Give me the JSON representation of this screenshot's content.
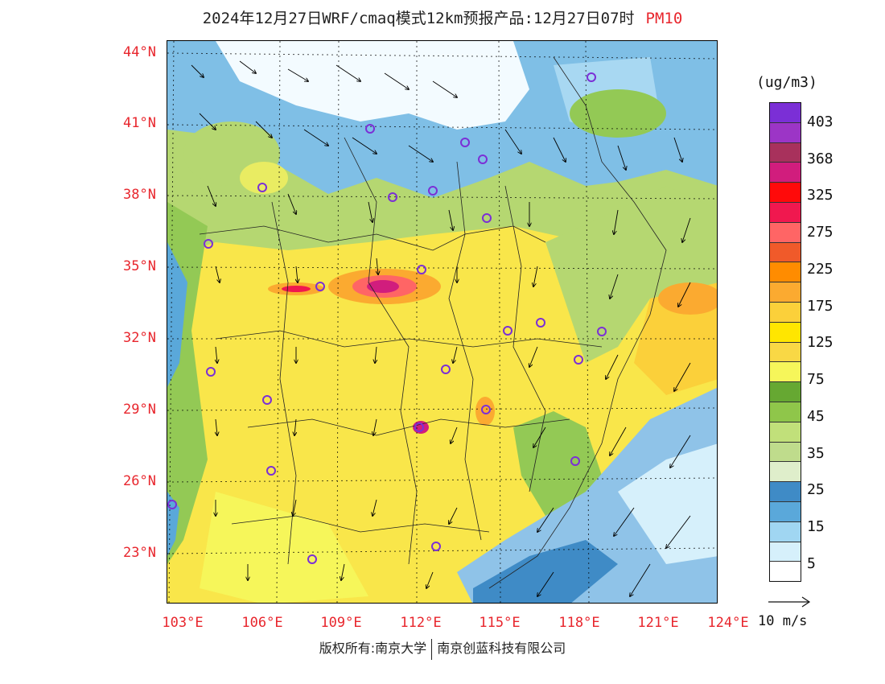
{
  "header": {
    "title": "2024年12月27日WRF/cmaq模式12km预报产品:12月27日07时",
    "variable": "PM10"
  },
  "map": {
    "lat_labels": [
      "44°N",
      "41°N",
      "38°N",
      "35°N",
      "32°N",
      "29°N",
      "26°N",
      "23°N"
    ],
    "lon_labels": [
      "103°E",
      "106°E",
      "109°E",
      "112°E",
      "115°E",
      "118°E",
      "121°E",
      "124°E"
    ],
    "colors": {
      "yellow_high": "#fce800",
      "orange": "#fbb33a",
      "red": "#e8262d",
      "magenta": "#c8157a",
      "green": "#93c955",
      "blue": "#4f97cf",
      "light_blue": "#a6d8f2"
    }
  },
  "legend": {
    "units": "(ug/m3)",
    "labels": [
      "403",
      "368",
      "325",
      "275",
      "225",
      "175",
      "125",
      "75",
      "45",
      "35",
      "25",
      "15",
      "5"
    ],
    "swatches": [
      "#7b2fd6",
      "#9c35c6",
      "#a8315c",
      "#d11d7d",
      "#ff0a0a",
      "#f0184f",
      "#ff6565",
      "#f05a2a",
      "#ff8c00",
      "#fbaa30",
      "#fbd03a",
      "#ffe600",
      "#f9d845",
      "#f6f65a",
      "#66a832",
      "#8fc64a",
      "#c1e07a",
      "#bfdc8c",
      "#dfeecb",
      "#3f8bc6",
      "#5aa8da",
      "#a0d6f2",
      "#d6f0fb",
      "#ffffff"
    ]
  },
  "wind_reference": {
    "label": "10 m/s"
  },
  "footer": {
    "left": "版权所有:南京大学",
    "right": "南京创蓝科技有限公司"
  }
}
